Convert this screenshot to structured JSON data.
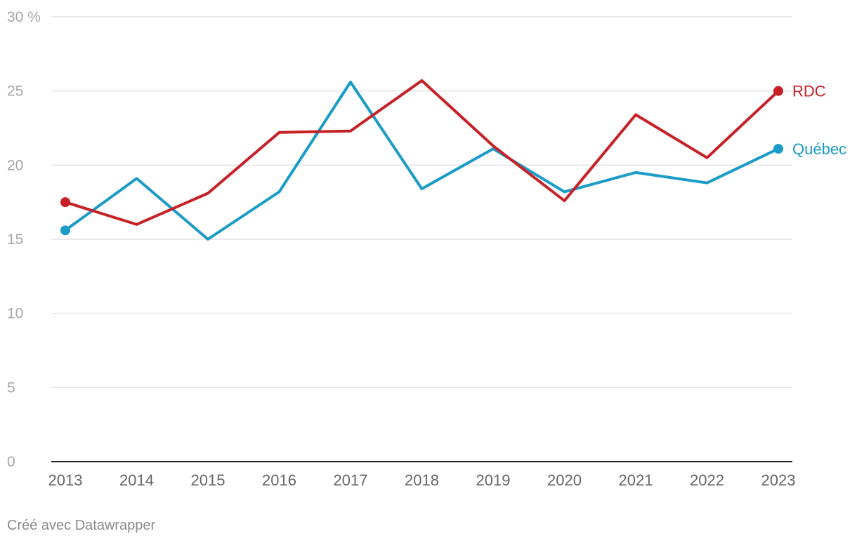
{
  "chart_data": {
    "type": "line",
    "title": "",
    "xlabel": "",
    "ylabel": "",
    "y_unit_label": "30 %",
    "x": [
      "2013",
      "2014",
      "2015",
      "2016",
      "2017",
      "2018",
      "2019",
      "2020",
      "2021",
      "2022",
      "2023"
    ],
    "ylim": [
      0,
      30
    ],
    "yticks": [
      0,
      5,
      10,
      15,
      20,
      25,
      30
    ],
    "grid": true,
    "legend": "inline-end-labels",
    "series": [
      {
        "name": "Québec",
        "color": "#1a9bc8",
        "values": [
          15.6,
          19.1,
          15.0,
          18.2,
          25.6,
          18.4,
          21.1,
          18.2,
          19.5,
          18.8,
          21.1
        ]
      },
      {
        "name": "RDC",
        "color": "#c62127",
        "values": [
          17.5,
          16.0,
          18.1,
          22.2,
          22.3,
          25.7,
          21.3,
          17.6,
          23.4,
          20.5,
          25.0
        ]
      }
    ]
  },
  "footer": {
    "credit": "Créé avec Datawrapper"
  }
}
